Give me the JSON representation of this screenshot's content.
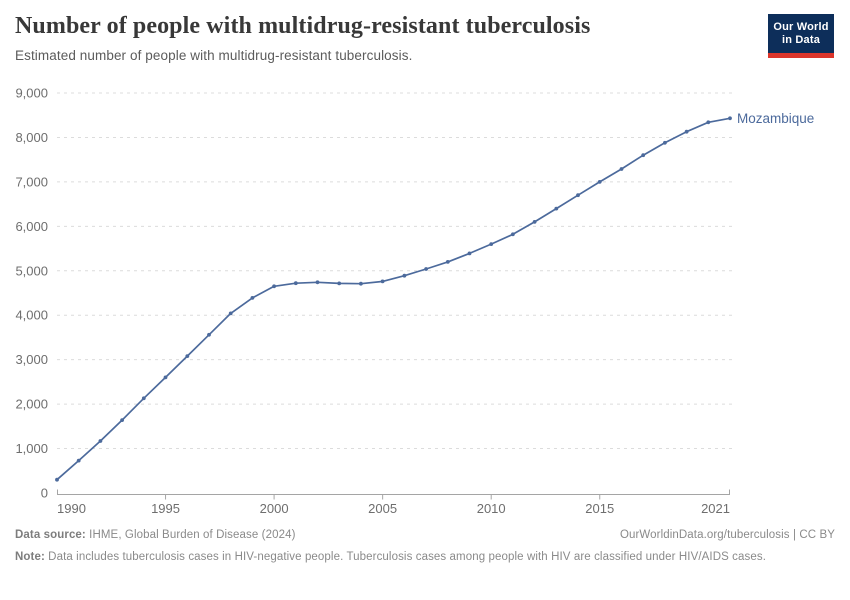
{
  "header": {
    "title": "Number of people with multidrug-resistant tuberculosis",
    "subtitle": "Estimated number of people with multidrug-resistant tuberculosis.",
    "logo": {
      "line1": "Our World",
      "line2": "in Data",
      "bg_color": "#0d2e5a",
      "stripe_color": "#dc352b"
    }
  },
  "chart_data": {
    "type": "line",
    "title": "Number of people with multidrug-resistant tuberculosis",
    "xlabel": "",
    "ylabel": "",
    "x": [
      1990,
      1991,
      1992,
      1993,
      1994,
      1995,
      1996,
      1997,
      1998,
      1999,
      2000,
      2001,
      2002,
      2003,
      2004,
      2005,
      2006,
      2007,
      2008,
      2009,
      2010,
      2011,
      2012,
      2013,
      2014,
      2015,
      2016,
      2017,
      2018,
      2019,
      2020,
      2021
    ],
    "series": [
      {
        "name": "Mozambique",
        "color": "#4c6a9c",
        "values": [
          300,
          730,
          1170,
          1640,
          2130,
          2600,
          3080,
          3560,
          4040,
          4390,
          4650,
          4720,
          4740,
          4715,
          4710,
          4760,
          4890,
          5040,
          5200,
          5390,
          5600,
          5820,
          6100,
          6400,
          6700,
          7000,
          7290,
          7600,
          7880,
          8130,
          8340,
          8430
        ]
      }
    ],
    "end_label": "Mozambique",
    "ylim": [
      0,
      9000
    ],
    "yticks": [
      0,
      1000,
      2000,
      3000,
      4000,
      5000,
      6000,
      7000,
      8000,
      9000
    ],
    "ytick_labels": [
      "0",
      "1,000",
      "2,000",
      "3,000",
      "4,000",
      "5,000",
      "6,000",
      "7,000",
      "8,000",
      "9,000"
    ],
    "xticks": [
      1990,
      1995,
      2000,
      2005,
      2010,
      2015,
      2021
    ],
    "grid": "horizontal-dashed",
    "legend_position": "end-of-line",
    "colors": {
      "gridline": "#dcdcdc",
      "axis": "#a5a5a5",
      "tick_label": "#6e6e6e"
    }
  },
  "footer": {
    "source_label": "Data source:",
    "source_text": " IHME, Global Burden of Disease (2024)",
    "citation": "OurWorldinData.org/tuberculosis | CC BY",
    "note_label": "Note:",
    "note_text": " Data includes tuberculosis cases in HIV-negative people. Tuberculosis cases among people with HIV are classified under HIV/AIDS cases."
  }
}
